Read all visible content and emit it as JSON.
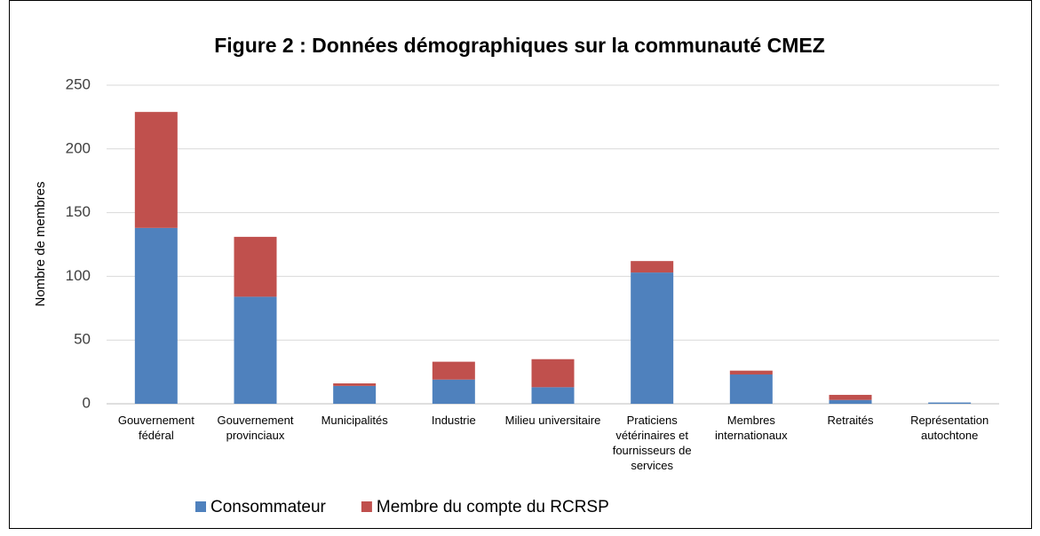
{
  "chart_data": {
    "type": "bar",
    "stacked": true,
    "title": "Figure 2 : Données démographiques sur la communauté CMEZ",
    "y_label": "Nombre de membres",
    "categories": [
      "Gouvernement fédéral",
      "Gouvernement provinciaux",
      "Municipalités",
      "Industrie",
      "Milieu universitaire",
      "Praticiens vétérinaires et fournisseurs de services",
      "Membres internationaux",
      "Retraités",
      "Représentation autochtone"
    ],
    "series": [
      {
        "name": "Consommateur",
        "color": "#4f81bd",
        "values": [
          138,
          84,
          14,
          19,
          13,
          103,
          23,
          3,
          1
        ]
      },
      {
        "name": "Membre du compte du RCRSP",
        "color": "#c0504d",
        "values": [
          91,
          47,
          2,
          14,
          22,
          9,
          3,
          4,
          0
        ]
      }
    ],
    "ylim": [
      0,
      250
    ],
    "yticks": [
      0,
      50,
      100,
      150,
      200,
      250
    ],
    "grid": true,
    "legend": "bottom"
  }
}
